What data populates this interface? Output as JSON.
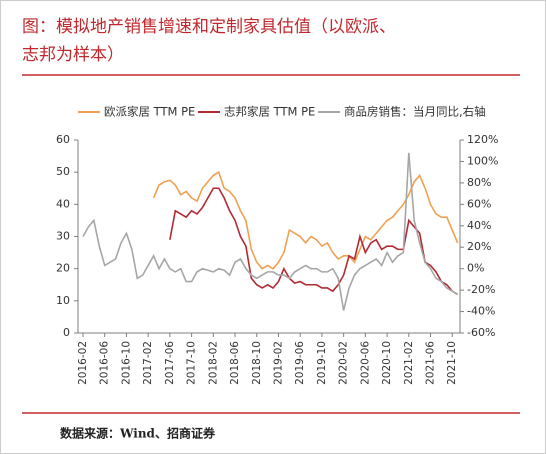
{
  "chart_data": {
    "type": "line",
    "title": "图：模拟地产销售增速和定制家具估值（以欧派、志邦为样本）",
    "source": "数据来源：Wind、招商证券",
    "categories": [
      "2016-02",
      null,
      null,
      null,
      "2016-06",
      null,
      null,
      null,
      "2016-10",
      null,
      null,
      null,
      "2017-02",
      null,
      null,
      null,
      "2017-06",
      null,
      null,
      null,
      "2017-10",
      null,
      null,
      null,
      "2018-02",
      null,
      null,
      null,
      "2018-06",
      null,
      null,
      null,
      "2018-10",
      null,
      null,
      null,
      "2019-02",
      null,
      null,
      null,
      "2019-06",
      null,
      null,
      null,
      "2019-10",
      null,
      null,
      null,
      "2020-02",
      null,
      null,
      null,
      "2020-06",
      null,
      null,
      null,
      "2020-10",
      null,
      null,
      null,
      "2021-02",
      null,
      null,
      null,
      "2021-06",
      null,
      null,
      null,
      "2021-10",
      null
    ],
    "ylim": [
      0,
      60
    ],
    "yticks": [
      0,
      10,
      20,
      30,
      40,
      50,
      60
    ],
    "y2lim": [
      -60,
      120
    ],
    "y2ticks": [
      {
        "value": -60,
        "label": "-60%"
      },
      {
        "value": -40,
        "label": "-40%"
      },
      {
        "value": -20,
        "label": "-20%"
      },
      {
        "value": 0,
        "label": "0%"
      },
      {
        "value": 20,
        "label": "20%"
      },
      {
        "value": 40,
        "label": "40%"
      },
      {
        "value": 60,
        "label": "60%"
      },
      {
        "value": 80,
        "label": "80%"
      },
      {
        "value": 100,
        "label": "100%"
      },
      {
        "value": 120,
        "label": "120%"
      }
    ],
    "grid": false,
    "series": [
      {
        "name": "欧派家居 TTM PE",
        "color": "#f0a050",
        "values": [
          null,
          null,
          null,
          null,
          null,
          null,
          null,
          null,
          null,
          null,
          null,
          null,
          null,
          42,
          46,
          47,
          47.5,
          46,
          43,
          44,
          42,
          41,
          45,
          47,
          49,
          50,
          45,
          44,
          42,
          38,
          35,
          26,
          22,
          20,
          21,
          20,
          22,
          25,
          32,
          31,
          30,
          28,
          30,
          29,
          27,
          28,
          25,
          23,
          24,
          24,
          22,
          26,
          30,
          29,
          31,
          33,
          35,
          36,
          38,
          40,
          43,
          47,
          49,
          45,
          40,
          37,
          36,
          36,
          32,
          28
        ]
      },
      {
        "name": "志邦家居 TTM PE",
        "color": "#b22a33",
        "values": [
          null,
          null,
          null,
          null,
          null,
          null,
          null,
          null,
          null,
          null,
          null,
          null,
          null,
          null,
          null,
          null,
          29,
          38,
          37,
          36,
          38,
          37,
          39,
          42,
          45,
          45,
          42,
          38,
          35,
          30,
          27,
          17,
          15,
          14,
          15,
          14,
          16,
          20,
          17,
          15.5,
          16,
          15,
          15,
          15,
          14,
          14,
          13,
          15,
          18,
          24,
          23,
          30,
          25,
          28,
          29,
          26,
          27,
          27,
          26,
          26,
          35,
          33,
          31,
          22,
          21,
          19,
          16,
          15,
          13,
          12
        ]
      },
      {
        "name": "商品房销售：当月同比,右轴",
        "color": "#a6a6a6",
        "axis": "y2",
        "values": [
          30,
          39,
          45,
          21,
          3,
          6,
          9,
          24,
          33,
          18,
          -9,
          -6,
          3,
          12,
          0,
          9,
          0,
          -3,
          0,
          -12,
          -12,
          -3,
          0,
          -1.5,
          -3,
          0,
          -1.5,
          -6,
          6,
          9,
          0,
          -6,
          -9,
          -6,
          -3,
          -3,
          -6,
          -6,
          -9,
          -3,
          0,
          3,
          0,
          0,
          -3,
          -3,
          0,
          -9,
          -39,
          -18,
          -6,
          0,
          3,
          6,
          9,
          3,
          15,
          6,
          12,
          15,
          108,
          45,
          24,
          6,
          0,
          -9,
          -12,
          -18,
          -21,
          -24
        ]
      }
    ]
  }
}
